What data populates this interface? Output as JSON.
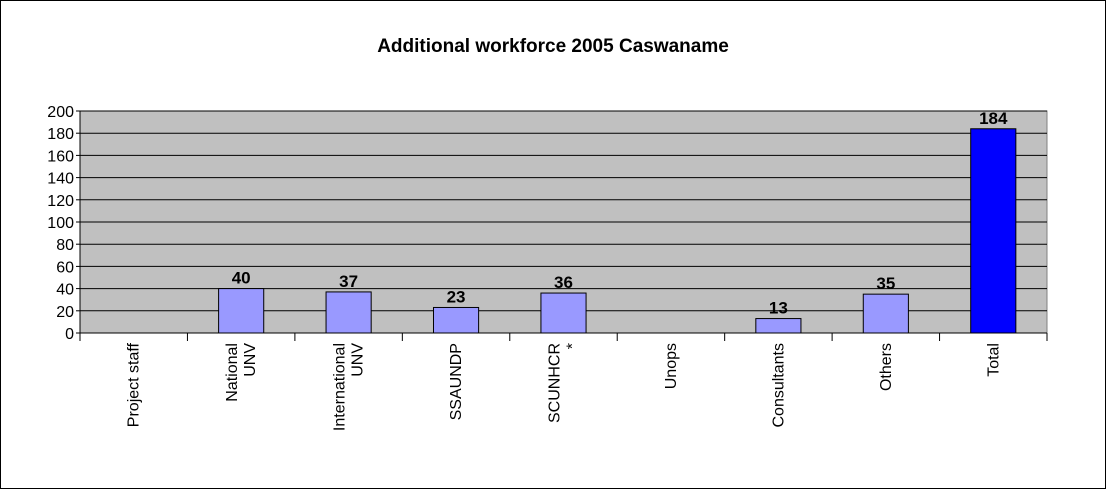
{
  "chart_data": {
    "type": "bar",
    "title": "Additional workforce 2005 Caswaname",
    "categories": [
      [
        "Project staff"
      ],
      [
        "National",
        "UNV"
      ],
      [
        "International",
        "UNV"
      ],
      [
        "SSAUNDP"
      ],
      [
        "SCUNHCR",
        "*"
      ],
      [
        "Unops"
      ],
      [
        "Consultants"
      ],
      [
        "Others"
      ],
      [
        "Total"
      ]
    ],
    "values": [
      null,
      40,
      37,
      23,
      36,
      null,
      13,
      35,
      184
    ],
    "colors": [
      "#9999ff",
      "#9999ff",
      "#9999ff",
      "#9999ff",
      "#9999ff",
      "#9999ff",
      "#9999ff",
      "#9999ff",
      "#0000ff"
    ],
    "ylim": [
      0,
      200
    ],
    "yticks": [
      0,
      20,
      40,
      60,
      80,
      100,
      120,
      140,
      160,
      180,
      200
    ],
    "grid": true
  }
}
